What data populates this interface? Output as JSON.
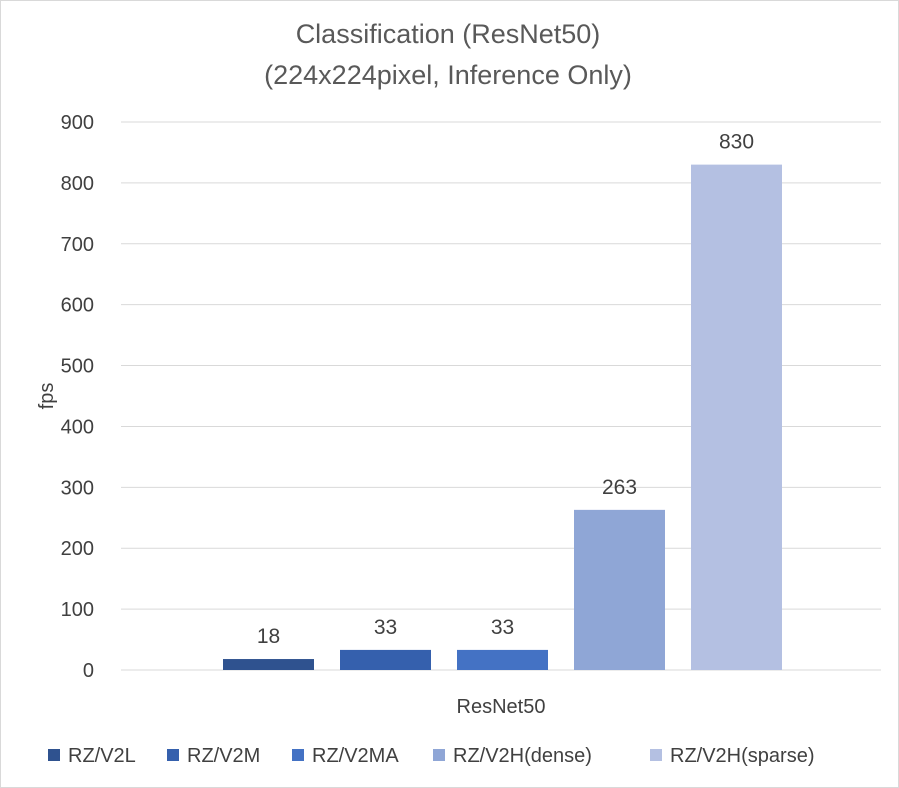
{
  "chart_data": {
    "type": "bar",
    "title": "Classification (ResNet50)",
    "subtitle": "(224x224pixel, Inference Only)",
    "xlabel": "",
    "ylabel": "fps",
    "categories": [
      "ResNet50"
    ],
    "series": [
      {
        "name": "RZ/V2L",
        "values": [
          18
        ],
        "color": "#2f528f"
      },
      {
        "name": "RZ/V2M",
        "values": [
          33
        ],
        "color": "#3560ad"
      },
      {
        "name": "RZ/V2MA",
        "values": [
          33
        ],
        "color": "#4472c4"
      },
      {
        "name": "RZ/V2H(dense)",
        "values": [
          263
        ],
        "color": "#8fa6d6"
      },
      {
        "name": "RZ/V2H(sparse)",
        "values": [
          830
        ],
        "color": "#b4c0e2"
      }
    ],
    "ylim": [
      0,
      900
    ],
    "yticks": [
      0,
      100,
      200,
      300,
      400,
      500,
      600,
      700,
      800,
      900
    ],
    "grid": true,
    "legend": "bottom",
    "data_labels": true
  }
}
